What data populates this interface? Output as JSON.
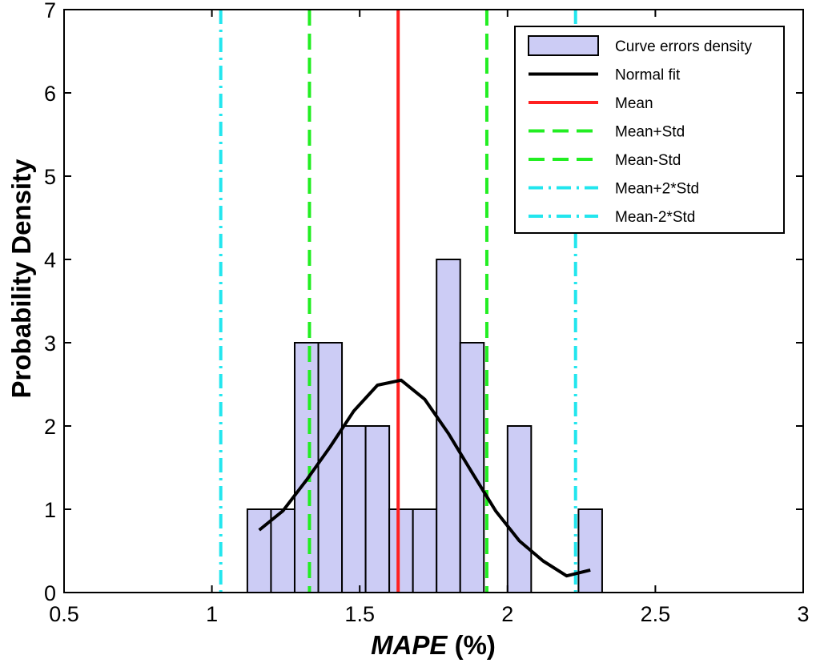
{
  "chart_data": {
    "type": "bar",
    "xlabel_italic": "MAPE",
    "xlabel_suffix": " (%)",
    "ylabel": "Probability Density",
    "xlim": [
      0.5,
      3
    ],
    "ylim": [
      0,
      7
    ],
    "xticks": [
      "0.5",
      "1",
      "1.5",
      "2",
      "2.5",
      "3"
    ],
    "xtick_values": [
      0.5,
      1,
      1.5,
      2,
      2.5,
      3
    ],
    "yticks": [
      "0",
      "1",
      "2",
      "3",
      "4",
      "5",
      "6",
      "7"
    ],
    "ytick_values": [
      0,
      1,
      2,
      3,
      4,
      5,
      6,
      7
    ],
    "histogram": {
      "name": "Curve errors density",
      "color": "#ccccf5",
      "bin_width": 0.08,
      "bin_left_edges": [
        1.12,
        1.2,
        1.28,
        1.36,
        1.44,
        1.52,
        1.6,
        1.68,
        1.76,
        1.84,
        1.92,
        2.0,
        2.08,
        2.16,
        2.24
      ],
      "values": [
        1,
        1,
        3,
        3,
        2,
        2,
        1,
        1,
        4,
        3,
        0,
        2,
        0,
        0,
        1
      ]
    },
    "normal_fit": {
      "name": "Normal fit",
      "color": "#000000",
      "x": [
        1.16,
        1.24,
        1.32,
        1.4,
        1.48,
        1.56,
        1.64,
        1.72,
        1.8,
        1.88,
        1.96,
        2.04,
        2.12,
        2.2,
        2.28
      ],
      "y": [
        0.75,
        0.98,
        1.35,
        1.75,
        2.18,
        2.49,
        2.55,
        2.32,
        1.91,
        1.44,
        0.98,
        0.62,
        0.38,
        0.2,
        0.27
      ]
    },
    "vlines": [
      {
        "name": "Mean",
        "x": 1.63,
        "color": "#ff2020",
        "style": "solid"
      },
      {
        "name": "Mean+Std",
        "x": 1.93,
        "color": "#22ee22",
        "style": "dashed"
      },
      {
        "name": "Mean-Std",
        "x": 1.33,
        "color": "#22ee22",
        "style": "dashed"
      },
      {
        "name": "Mean+2*Std",
        "x": 2.23,
        "color": "#22e6ee",
        "style": "dashdot"
      },
      {
        "name": "Mean-2*Std",
        "x": 1.03,
        "color": "#22e6ee",
        "style": "dashdot"
      }
    ],
    "legend": {
      "position": "top-right",
      "entries": [
        {
          "label": "Curve errors density",
          "kind": "patch",
          "color": "#ccccf5"
        },
        {
          "label": "Normal fit",
          "kind": "solid",
          "color": "#000000"
        },
        {
          "label": "Mean",
          "kind": "solid",
          "color": "#ff2020"
        },
        {
          "label": "Mean+Std",
          "kind": "dashed",
          "color": "#22ee22"
        },
        {
          "label": "Mean-Std",
          "kind": "dashed",
          "color": "#22ee22"
        },
        {
          "label": "Mean+2*Std",
          "kind": "dashdot",
          "color": "#22e6ee"
        },
        {
          "label": "Mean-2*Std",
          "kind": "dashdot",
          "color": "#22e6ee"
        }
      ]
    }
  }
}
